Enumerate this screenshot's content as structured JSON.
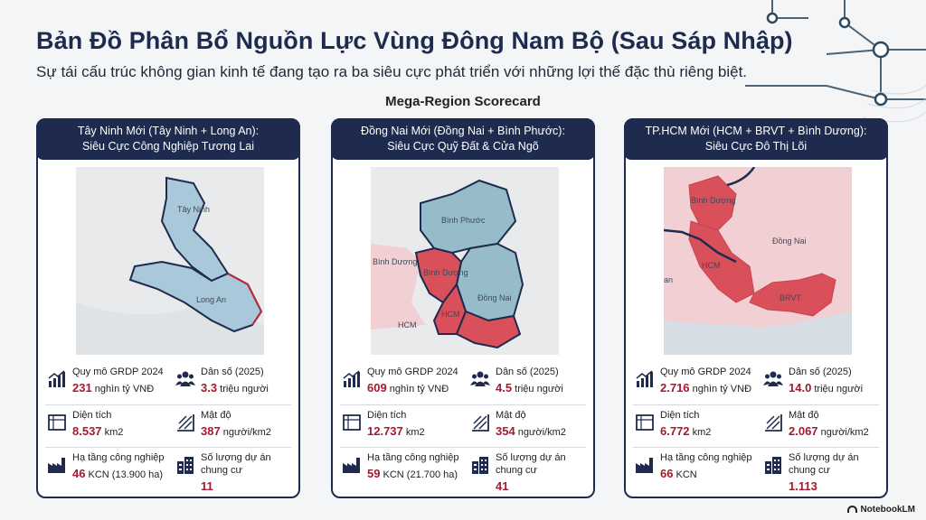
{
  "title": "Bản Đồ Phân Bổ Nguồn Lực Vùng Đông Nam Bộ (Sau Sáp Nhập)",
  "subtitle": "Sự tái cấu trúc không gian kinh tế đang tạo ra ba siêu cực phát triển với những lợi thế đặc thù riêng biệt.",
  "section_label": "Mega-Region Scorecard",
  "colors": {
    "navy": "#1e2b4f",
    "blue_region": "#a9c8da",
    "teal_region": "#96bcc9",
    "red_region": "#d94f5a",
    "pink_bg": "#f2cfd2",
    "accent_red": "#a6192e"
  },
  "cards": [
    {
      "header_line1": "Tây Ninh Mới (Tây Ninh + Long An):",
      "header_line2": "Siêu Cực Công Nghiệp Tương Lai",
      "map_labels": [
        "Tây Ninh",
        "Long An"
      ],
      "stats": {
        "grdp_label": "Quy mô GRDP 2024",
        "grdp_value": "231",
        "grdp_unit": "nghìn tỷ VNĐ",
        "pop_label": "Dân số (2025)",
        "pop_value": "3.3",
        "pop_unit": "triệu người",
        "area_label": "Diện tích",
        "area_value": "8.537",
        "area_unit": "km2",
        "density_label": "Mật độ",
        "density_value": "387",
        "density_unit": "người/km2",
        "industry_label": "Hạ tầng công nghiệp",
        "industry_value": "46",
        "industry_unit": "KCN (13.900 ha)",
        "projects_label": "Số lượng dự án chung cư",
        "projects_value": "11"
      }
    },
    {
      "header_line1": "Đồng Nai Mới (Đồng Nai + Bình Phước):",
      "header_line2": "Siêu Cực Quỹ Đất & Cửa Ngõ",
      "map_labels": [
        "Bình Phước",
        "Bình Dương",
        "Bình Dương",
        "HCM",
        "HCM",
        "Đồng Nai"
      ],
      "stats": {
        "grdp_label": "Quy mô GRDP 2024",
        "grdp_value": "609",
        "grdp_unit": "nghìn tỷ VNĐ",
        "pop_label": "Dân số (2025)",
        "pop_value": "4.5",
        "pop_unit": "triệu người",
        "area_label": "Diện tích",
        "area_value": "12.737",
        "area_unit": "km2",
        "density_label": "Mật độ",
        "density_value": "354",
        "density_unit": "người/km2",
        "industry_label": "Hạ tầng công nghiệp",
        "industry_value": "59",
        "industry_unit": "KCN (21.700 ha)",
        "projects_label": "Số lượng dự án chung cư",
        "projects_value": "41"
      }
    },
    {
      "header_line1": "TP.HCM Mới (HCM + BRVT + Bình Dương):",
      "header_line2": "Siêu Cực Đô Thị Lõi",
      "map_labels": [
        "Bình Dương",
        "HCM",
        "Đồng Nai",
        "BRVT",
        "an"
      ],
      "stats": {
        "grdp_label": "Quy mô GRDP 2024",
        "grdp_value": "2.716",
        "grdp_unit": "nghìn tỷ VNĐ",
        "pop_label": "Dân số (2025)",
        "pop_value": "14.0",
        "pop_unit": "triệu người",
        "area_label": "Diện tích",
        "area_value": "6.772",
        "area_unit": "km2",
        "density_label": "Mật độ",
        "density_value": "2.067",
        "density_unit": "người/km2",
        "industry_label": "Hạ tầng công nghiệp",
        "industry_value": "66",
        "industry_unit": "KCN",
        "projects_label": "Số lượng dự án chung cư",
        "projects_value": "1.113"
      }
    }
  ],
  "brand": "NotebookLM",
  "icons": [
    "bar-chart-icon",
    "people-icon",
    "map-icon",
    "density-icon",
    "factory-icon",
    "buildings-icon"
  ]
}
